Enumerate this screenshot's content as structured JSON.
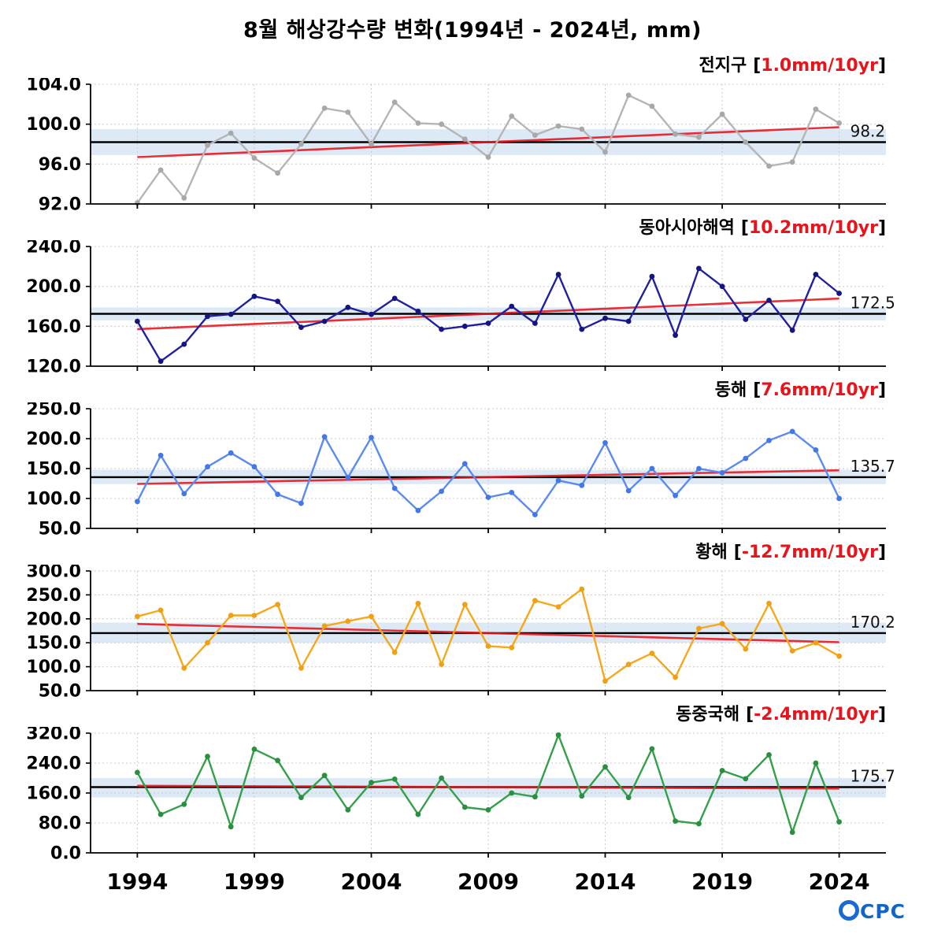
{
  "title": "8월 해상강수량 변화(1994년 - 2024년, mm)",
  "labels": {
    "bracket_open": "[",
    "bracket_close": "]"
  },
  "colors": {
    "trend_red": "#e8141c",
    "mean_black": "#000000",
    "band_blue": "#dde9f4",
    "grid_gray": "#c9c9c9",
    "logo_blue": "#1464c8"
  },
  "logo": {
    "o": "O",
    "rest": "CPC"
  },
  "chart_data": {
    "type": "line",
    "title": "8월 해상강수량 변화(1994년 - 2024년, mm)",
    "x_label_ticks": [
      1994,
      1999,
      2004,
      2009,
      2014,
      2019,
      2024
    ],
    "x_range": [
      1992,
      2026
    ],
    "years": [
      1994,
      1995,
      1996,
      1997,
      1998,
      1999,
      2000,
      2001,
      2002,
      2003,
      2004,
      2005,
      2006,
      2007,
      2008,
      2009,
      2010,
      2011,
      2012,
      2013,
      2014,
      2015,
      2016,
      2017,
      2018,
      2019,
      2020,
      2021,
      2022,
      2023,
      2024
    ],
    "charts": [
      {
        "name": "전지구",
        "trend": "1.0mm/10yr",
        "mean": 98.2,
        "mean_label": "98.2",
        "ylim": [
          92,
          104
        ],
        "yticks": [
          92,
          96,
          100,
          104
        ],
        "band": [
          96.9,
          99.5
        ],
        "trend_line": [
          96.7,
          99.7
        ],
        "color": "#b5b5b5",
        "marker_color": "#a8a8a8",
        "values": [
          92.1,
          95.4,
          92.6,
          97.9,
          99.1,
          96.6,
          95.1,
          98.0,
          101.6,
          101.2,
          98.0,
          102.2,
          100.1,
          100.0,
          98.5,
          96.7,
          100.8,
          98.9,
          99.8,
          99.5,
          97.2,
          102.9,
          101.8,
          99.0,
          98.7,
          101.0,
          98.2,
          95.8,
          96.2,
          101.5,
          100.1
        ]
      },
      {
        "name": "동아시아해역",
        "trend": "10.2mm/10yr",
        "mean": 172.5,
        "mean_label": "172.5",
        "ylim": [
          120,
          240
        ],
        "yticks": [
          120,
          160,
          200,
          240
        ],
        "band": [
          166,
          179
        ],
        "trend_line": [
          157.2,
          187.8
        ],
        "color": "#2020a0",
        "marker_color": "#151580",
        "values": [
          165,
          125,
          142,
          170,
          172,
          190,
          185,
          159,
          165,
          179,
          172,
          188,
          175,
          157,
          160,
          163,
          180,
          163,
          212,
          157,
          168,
          165,
          210,
          151,
          218,
          200,
          167,
          186,
          156,
          212,
          193
        ]
      },
      {
        "name": "동해",
        "trend": "7.6mm/10yr",
        "mean": 135.7,
        "mean_label": "135.7",
        "ylim": [
          50,
          250
        ],
        "yticks": [
          50,
          100,
          150,
          200,
          250
        ],
        "band": [
          124,
          148
        ],
        "trend_line": [
          124.3,
          147.1
        ],
        "color": "#5b8bef",
        "marker_color": "#4478e8",
        "values": [
          95,
          172,
          108,
          153,
          176,
          153,
          107,
          92,
          203,
          135,
          202,
          117,
          80,
          112,
          158,
          102,
          110,
          73,
          130,
          122,
          193,
          113,
          150,
          105,
          150,
          143,
          167,
          197,
          212,
          181,
          100
        ]
      },
      {
        "name": "황해",
        "trend": "-12.7mm/10yr",
        "mean": 170.2,
        "mean_label": "170.2",
        "ylim": [
          50,
          300
        ],
        "yticks": [
          50,
          100,
          150,
          200,
          250,
          300
        ],
        "band": [
          150,
          192
        ],
        "trend_line": [
          189.3,
          151.2
        ],
        "color": "#f5a81c",
        "marker_color": "#f0a015",
        "values": [
          205,
          218,
          97,
          150,
          207,
          207,
          230,
          97,
          185,
          195,
          205,
          130,
          232,
          105,
          230,
          143,
          140,
          238,
          225,
          262,
          70,
          105,
          128,
          78,
          180,
          190,
          137,
          232,
          133,
          150,
          122
        ]
      },
      {
        "name": "동중국해",
        "trend": "-2.4mm/10yr",
        "mean": 175.7,
        "mean_label": "175.7",
        "ylim": [
          0,
          320
        ],
        "yticks": [
          0,
          80,
          160,
          240,
          320
        ],
        "band": [
          148,
          200
        ],
        "trend_line": [
          179.3,
          172.1
        ],
        "color": "#35a04a",
        "marker_color": "#2a8f40",
        "values": [
          215,
          103,
          130,
          258,
          70,
          277,
          247,
          148,
          207,
          115,
          188,
          197,
          103,
          200,
          122,
          115,
          160,
          150,
          315,
          152,
          230,
          148,
          278,
          85,
          78,
          220,
          198,
          262,
          55,
          240,
          83
        ]
      }
    ]
  }
}
